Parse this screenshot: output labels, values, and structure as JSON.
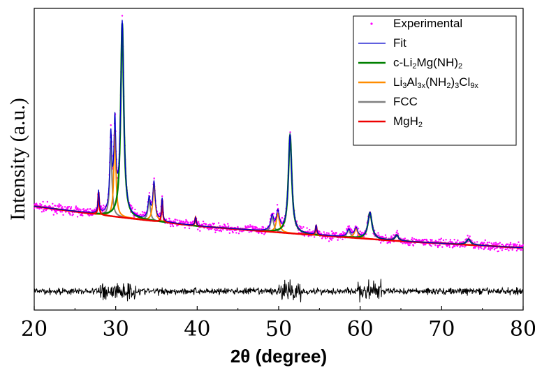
{
  "chart_data": {
    "type": "line",
    "title": "",
    "xlabel": "2θ (degree)",
    "ylabel": "Intensity (a.u.)",
    "xlim": [
      20,
      80
    ],
    "ylim": [
      -0.35,
      1.25
    ],
    "xticks": [
      20,
      30,
      40,
      50,
      60,
      70,
      80
    ],
    "grid": false,
    "legend_position": "top-right",
    "baseline": {
      "x": [
        20,
        28,
        40,
        52,
        65,
        80
      ],
      "y": [
        0.2,
        0.155,
        0.095,
        0.055,
        0.015,
        -0.02
      ]
    },
    "peaks": [
      {
        "phase": "c-Li2Mg(NH)2",
        "center": 30.8,
        "height": 1.03,
        "width": 0.45
      },
      {
        "phase": "c-Li2Mg(NH)2",
        "center": 51.4,
        "height": 0.52,
        "width": 0.5
      },
      {
        "phase": "c-Li2Mg(NH)2",
        "center": 61.2,
        "height": 0.14,
        "width": 0.6
      },
      {
        "phase": "c-Li2Mg(NH)2",
        "center": 64.5,
        "height": 0.03,
        "width": 0.5
      },
      {
        "phase": "c-Li2Mg(NH)2",
        "center": 73.3,
        "height": 0.03,
        "width": 0.6
      },
      {
        "phase": "Li3Al3x(NH2)3Cl9x",
        "center": 29.9,
        "height": 0.46,
        "width": 0.3
      },
      {
        "phase": "Li3Al3x(NH2)3Cl9x",
        "center": 34.7,
        "height": 0.2,
        "width": 0.35
      },
      {
        "phase": "Li3Al3x(NH2)3Cl9x",
        "center": 49.9,
        "height": 0.1,
        "width": 0.45
      },
      {
        "phase": "Li3Al3x(NH2)3Cl9x",
        "center": 59.5,
        "height": 0.05,
        "width": 0.5
      },
      {
        "phase": "FCC",
        "center": 29.4,
        "height": 0.4,
        "width": 0.3
      },
      {
        "phase": "FCC",
        "center": 34.1,
        "height": 0.11,
        "width": 0.35
      },
      {
        "phase": "FCC",
        "center": 49.2,
        "height": 0.08,
        "width": 0.45
      },
      {
        "phase": "FCC",
        "center": 58.6,
        "height": 0.04,
        "width": 0.5
      },
      {
        "phase": "MgH2",
        "center": 27.9,
        "height": 0.12,
        "width": 0.18
      },
      {
        "phase": "MgH2",
        "center": 35.7,
        "height": 0.12,
        "width": 0.18
      },
      {
        "phase": "MgH2",
        "center": 39.8,
        "height": 0.045,
        "width": 0.2
      },
      {
        "phase": "MgH2",
        "center": 54.6,
        "height": 0.05,
        "width": 0.2
      }
    ],
    "series": [
      {
        "name": "Experimental",
        "color": "#ff00ff",
        "style": "dots"
      },
      {
        "name": "Fit",
        "color": "#0000cc",
        "style": "line"
      },
      {
        "name": "c-Li2Mg(NH)2",
        "color": "#008000",
        "style": "line"
      },
      {
        "name": "Li3Al3x(NH2)3Cl9x",
        "color": "#ff8c00",
        "style": "line"
      },
      {
        "name": "FCC",
        "color": "#808080",
        "style": "line"
      },
      {
        "name": "MgH2",
        "color": "#ee0000",
        "style": "line"
      },
      {
        "name": "",
        "color": "#000000",
        "style": "residual"
      }
    ]
  }
}
